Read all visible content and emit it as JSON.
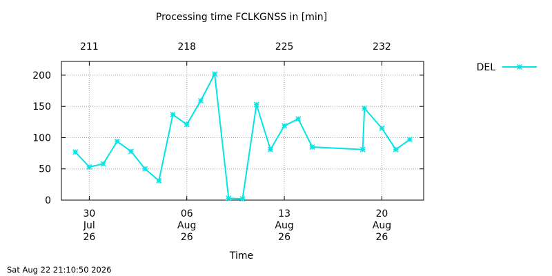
{
  "chart_data": {
    "type": "line",
    "title": "Processing time FCLKGNSS in [min]",
    "xlabel": "Time",
    "ylabel": "",
    "ylim": [
      0,
      222
    ],
    "y_ticks": [
      0,
      50,
      100,
      150,
      200
    ],
    "x_range_days": [
      "2026-07-28",
      "2026-08-23"
    ],
    "bottom_ticks": [
      {
        "date": "2026-07-30",
        "label": [
          "30",
          "Jul",
          "26"
        ]
      },
      {
        "date": "2026-08-06",
        "label": [
          "06",
          "Aug",
          "26"
        ]
      },
      {
        "date": "2026-08-13",
        "label": [
          "13",
          "Aug",
          "26"
        ]
      },
      {
        "date": "2026-08-20",
        "label": [
          "20",
          "Aug",
          "26"
        ]
      }
    ],
    "top_ticks": [
      {
        "date": "2026-07-30",
        "label": "211"
      },
      {
        "date": "2026-08-06",
        "label": "218"
      },
      {
        "date": "2026-08-13",
        "label": "225"
      },
      {
        "date": "2026-08-20",
        "label": "232"
      }
    ],
    "grid": true,
    "legend": "top-right, outside plot",
    "series": [
      {
        "name": "DEL",
        "color": "#00e5e5",
        "marker": "star",
        "points": [
          [
            "2026-07-29",
            77
          ],
          [
            "2026-07-30",
            53
          ],
          [
            "2026-07-31",
            58
          ],
          [
            "2026-08-01",
            94
          ],
          [
            "2026-08-02",
            78
          ],
          [
            "2026-08-03",
            50
          ],
          [
            "2026-08-04",
            31
          ],
          [
            "2026-08-05",
            137
          ],
          [
            "2026-08-06",
            121
          ],
          [
            "2026-08-07",
            159
          ],
          [
            "2026-08-08",
            202
          ],
          [
            "2026-08-09",
            3
          ],
          [
            "2026-08-10",
            2
          ],
          [
            "2026-08-11",
            153
          ],
          [
            "2026-08-12",
            81
          ],
          [
            "2026-08-13",
            119
          ],
          [
            "2026-08-14",
            130
          ],
          [
            "2026-08-15",
            85
          ],
          [
            "2026-08-18 15:00",
            81
          ],
          [
            "2026-08-18 18:00",
            147
          ],
          [
            "2026-08-20",
            115
          ],
          [
            "2026-08-21",
            81
          ],
          [
            "2026-08-22",
            97
          ]
        ]
      }
    ]
  },
  "timestamp": "Sat Aug 22 21:10:50 2026"
}
